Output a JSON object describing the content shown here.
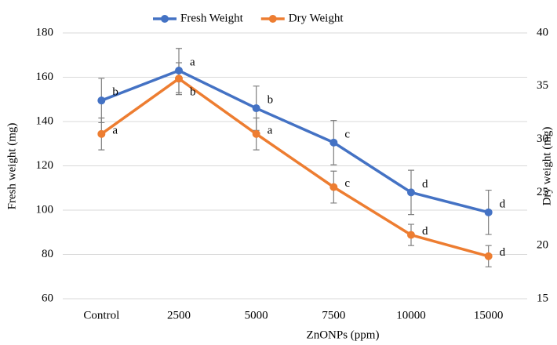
{
  "chart_data": {
    "type": "line",
    "x_label": "ZnONPs (ppm)",
    "y_label": "Fresh weight (mg)",
    "y2_label": "Dry weight (mg)",
    "categories": [
      "Control",
      "2500",
      "5000",
      "7500",
      "10000",
      "15000"
    ],
    "series": [
      {
        "name": "Fresh Weight",
        "color": "#4472c4",
        "values": [
          149.5,
          163,
          146,
          130.5,
          108,
          99
        ],
        "errors": [
          10,
          10,
          10,
          10,
          10,
          10
        ],
        "annotations": [
          "b",
          "a",
          "b",
          "c",
          "d",
          "d"
        ]
      },
      {
        "name": "Dry Weight",
        "color": "#ed7d31",
        "axis": "y2",
        "values": [
          30.5,
          35.7,
          30.5,
          25.5,
          21,
          19
        ],
        "errors": [
          1.5,
          1.5,
          1.5,
          1.5,
          1,
          1
        ],
        "annotations": [
          "a",
          "b",
          "a",
          "c",
          "d",
          "d"
        ]
      }
    ],
    "error_color": "#7f7f7f",
    "ylim": [
      60,
      180
    ],
    "yticks": [
      60,
      80,
      100,
      120,
      140,
      160,
      180
    ],
    "y2lim": [
      15,
      40
    ],
    "y2ticks": [
      15,
      20,
      25,
      30,
      35,
      40
    ],
    "grid": true,
    "legend": "top"
  }
}
